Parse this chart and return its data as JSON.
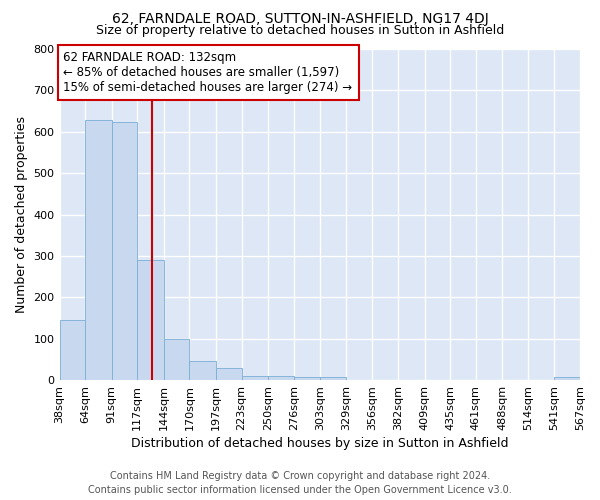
{
  "title": "62, FARNDALE ROAD, SUTTON-IN-ASHFIELD, NG17 4DJ",
  "subtitle": "Size of property relative to detached houses in Sutton in Ashfield",
  "xlabel": "Distribution of detached houses by size in Sutton in Ashfield",
  "ylabel": "Number of detached properties",
  "bin_edges": [
    38,
    64,
    91,
    117,
    144,
    170,
    197,
    223,
    250,
    276,
    303,
    329,
    356,
    382,
    409,
    435,
    461,
    488,
    514,
    541,
    567
  ],
  "bin_counts": [
    145,
    628,
    623,
    290,
    100,
    45,
    30,
    10,
    10,
    8,
    8,
    0,
    0,
    0,
    0,
    0,
    0,
    0,
    0,
    8
  ],
  "bar_color": "#c8d8ee",
  "bar_edge_color": "#7aaed6",
  "vline_x": 132,
  "vline_color": "#cc0000",
  "annotation_line1": "62 FARNDALE ROAD: 132sqm",
  "annotation_line2": "← 85% of detached houses are smaller (1,597)",
  "annotation_line3": "15% of semi-detached houses are larger (274) →",
  "annotation_box_color": "#ffffff",
  "annotation_box_edge": "#cc0000",
  "ylim": [
    0,
    800
  ],
  "yticks": [
    0,
    100,
    200,
    300,
    400,
    500,
    600,
    700,
    800
  ],
  "xtick_labels": [
    "38sqm",
    "64sqm",
    "91sqm",
    "117sqm",
    "144sqm",
    "170sqm",
    "197sqm",
    "223sqm",
    "250sqm",
    "276sqm",
    "303sqm",
    "329sqm",
    "356sqm",
    "382sqm",
    "409sqm",
    "435sqm",
    "461sqm",
    "488sqm",
    "514sqm",
    "541sqm",
    "567sqm"
  ],
  "background_color": "#dde7f5",
  "grid_color": "#ffffff",
  "footer_line1": "Contains HM Land Registry data © Crown copyright and database right 2024.",
  "footer_line2": "Contains public sector information licensed under the Open Government Licence v3.0.",
  "title_fontsize": 10,
  "subtitle_fontsize": 9,
  "xlabel_fontsize": 9,
  "ylabel_fontsize": 9,
  "tick_fontsize": 8,
  "annotation_fontsize": 8.5,
  "footer_fontsize": 7
}
